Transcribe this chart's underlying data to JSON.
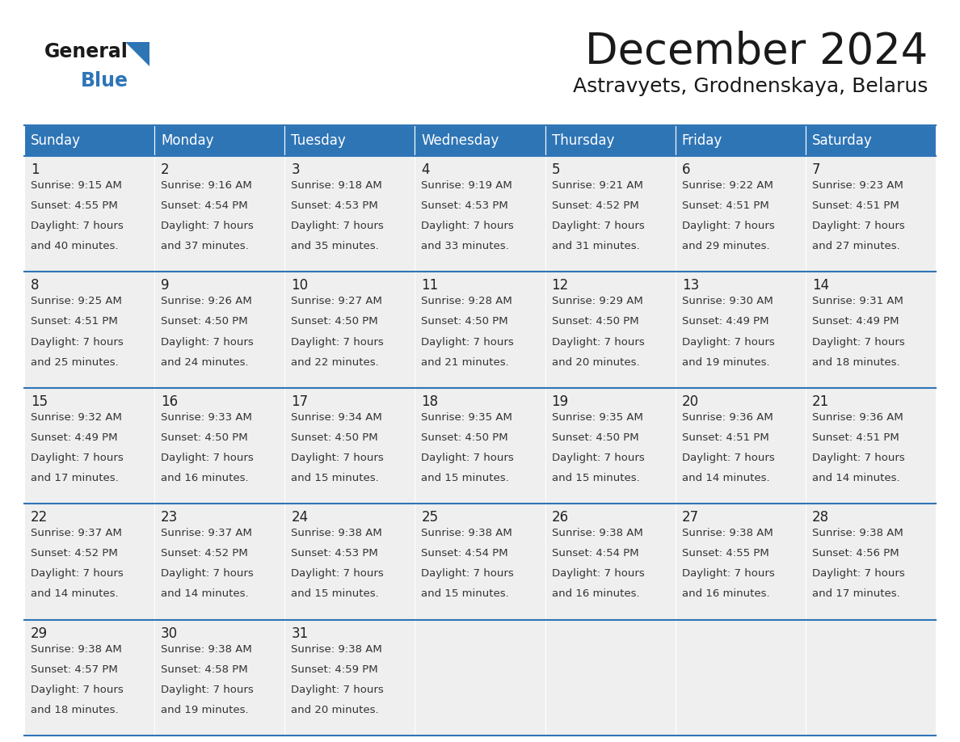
{
  "title": "December 2024",
  "subtitle": "Astravyets, Grodnenskaya, Belarus",
  "header_color": "#2E75B6",
  "header_text_color": "#FFFFFF",
  "cell_bg_color": "#EFEFEF",
  "day_headers": [
    "Sunday",
    "Monday",
    "Tuesday",
    "Wednesday",
    "Thursday",
    "Friday",
    "Saturday"
  ],
  "title_color": "#1a1a1a",
  "subtitle_color": "#1a1a1a",
  "number_color": "#222222",
  "text_color": "#333333",
  "line_color": "#2E75B6",
  "logo_general_color": "#1a1a1a",
  "logo_blue_color": "#2E75B6",
  "logo_triangle_color": "#2E75B6",
  "calendar_data": [
    [
      {
        "day": 1,
        "sunrise": "9:15 AM",
        "sunset": "4:55 PM",
        "daylight_min": "and 40 minutes."
      },
      {
        "day": 2,
        "sunrise": "9:16 AM",
        "sunset": "4:54 PM",
        "daylight_min": "and 37 minutes."
      },
      {
        "day": 3,
        "sunrise": "9:18 AM",
        "sunset": "4:53 PM",
        "daylight_min": "and 35 minutes."
      },
      {
        "day": 4,
        "sunrise": "9:19 AM",
        "sunset": "4:53 PM",
        "daylight_min": "and 33 minutes."
      },
      {
        "day": 5,
        "sunrise": "9:21 AM",
        "sunset": "4:52 PM",
        "daylight_min": "and 31 minutes."
      },
      {
        "day": 6,
        "sunrise": "9:22 AM",
        "sunset": "4:51 PM",
        "daylight_min": "and 29 minutes."
      },
      {
        "day": 7,
        "sunrise": "9:23 AM",
        "sunset": "4:51 PM",
        "daylight_min": "and 27 minutes."
      }
    ],
    [
      {
        "day": 8,
        "sunrise": "9:25 AM",
        "sunset": "4:51 PM",
        "daylight_min": "and 25 minutes."
      },
      {
        "day": 9,
        "sunrise": "9:26 AM",
        "sunset": "4:50 PM",
        "daylight_min": "and 24 minutes."
      },
      {
        "day": 10,
        "sunrise": "9:27 AM",
        "sunset": "4:50 PM",
        "daylight_min": "and 22 minutes."
      },
      {
        "day": 11,
        "sunrise": "9:28 AM",
        "sunset": "4:50 PM",
        "daylight_min": "and 21 minutes."
      },
      {
        "day": 12,
        "sunrise": "9:29 AM",
        "sunset": "4:50 PM",
        "daylight_min": "and 20 minutes."
      },
      {
        "day": 13,
        "sunrise": "9:30 AM",
        "sunset": "4:49 PM",
        "daylight_min": "and 19 minutes."
      },
      {
        "day": 14,
        "sunrise": "9:31 AM",
        "sunset": "4:49 PM",
        "daylight_min": "and 18 minutes."
      }
    ],
    [
      {
        "day": 15,
        "sunrise": "9:32 AM",
        "sunset": "4:49 PM",
        "daylight_min": "and 17 minutes."
      },
      {
        "day": 16,
        "sunrise": "9:33 AM",
        "sunset": "4:50 PM",
        "daylight_min": "and 16 minutes."
      },
      {
        "day": 17,
        "sunrise": "9:34 AM",
        "sunset": "4:50 PM",
        "daylight_min": "and 15 minutes."
      },
      {
        "day": 18,
        "sunrise": "9:35 AM",
        "sunset": "4:50 PM",
        "daylight_min": "and 15 minutes."
      },
      {
        "day": 19,
        "sunrise": "9:35 AM",
        "sunset": "4:50 PM",
        "daylight_min": "and 15 minutes."
      },
      {
        "day": 20,
        "sunrise": "9:36 AM",
        "sunset": "4:51 PM",
        "daylight_min": "and 14 minutes."
      },
      {
        "day": 21,
        "sunrise": "9:36 AM",
        "sunset": "4:51 PM",
        "daylight_min": "and 14 minutes."
      }
    ],
    [
      {
        "day": 22,
        "sunrise": "9:37 AM",
        "sunset": "4:52 PM",
        "daylight_min": "and 14 minutes."
      },
      {
        "day": 23,
        "sunrise": "9:37 AM",
        "sunset": "4:52 PM",
        "daylight_min": "and 14 minutes."
      },
      {
        "day": 24,
        "sunrise": "9:38 AM",
        "sunset": "4:53 PM",
        "daylight_min": "and 15 minutes."
      },
      {
        "day": 25,
        "sunrise": "9:38 AM",
        "sunset": "4:54 PM",
        "daylight_min": "and 15 minutes."
      },
      {
        "day": 26,
        "sunrise": "9:38 AM",
        "sunset": "4:54 PM",
        "daylight_min": "and 16 minutes."
      },
      {
        "day": 27,
        "sunrise": "9:38 AM",
        "sunset": "4:55 PM",
        "daylight_min": "and 16 minutes."
      },
      {
        "day": 28,
        "sunrise": "9:38 AM",
        "sunset": "4:56 PM",
        "daylight_min": "and 17 minutes."
      }
    ],
    [
      {
        "day": 29,
        "sunrise": "9:38 AM",
        "sunset": "4:57 PM",
        "daylight_min": "and 18 minutes."
      },
      {
        "day": 30,
        "sunrise": "9:38 AM",
        "sunset": "4:58 PM",
        "daylight_min": "and 19 minutes."
      },
      {
        "day": 31,
        "sunrise": "9:38 AM",
        "sunset": "4:59 PM",
        "daylight_min": "and 20 minutes."
      },
      null,
      null,
      null,
      null
    ]
  ]
}
